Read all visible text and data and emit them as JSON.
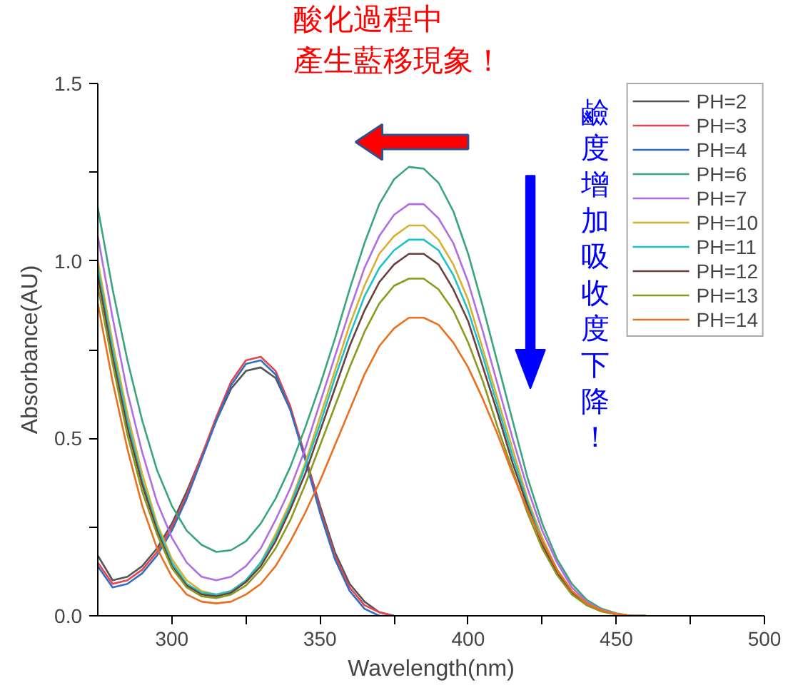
{
  "chart_data": {
    "type": "line",
    "xlabel": "Wavelength(nm)",
    "ylabel": "Absorbance(AU)",
    "xlim": [
      275,
      500
    ],
    "xticks": [
      300,
      {
        "value": 325,
        "label": null
      },
      350,
      {
        "value": 375,
        "label": null
      },
      400,
      {
        "value": 425,
        "label": null
      },
      450,
      {
        "value": 475,
        "label": null
      },
      500
    ],
    "ylim": [
      0,
      1.5
    ],
    "yticks": [
      {
        "value": 0,
        "label": "0.0"
      },
      {
        "value": 0.25,
        "label": null
      },
      {
        "value": 0.5,
        "label": "0.5"
      },
      {
        "value": 0.75,
        "label": null
      },
      {
        "value": 1.0,
        "label": "1.0"
      },
      {
        "value": 1.25,
        "label": null
      },
      {
        "value": 1.5,
        "label": "1.5"
      }
    ],
    "grid": false,
    "legend": "top right",
    "marker": "none",
    "line_style": "solid",
    "annotations": [
      "酸化過程中",
      "產生藍移現象！",
      "鹼度增加吸收度下降！"
    ],
    "series": [
      {
        "name": "PH=2",
        "color": "#555555",
        "x": [
          275,
          280,
          285,
          290,
          295,
          300,
          305,
          310,
          315,
          320,
          325,
          330,
          335,
          340,
          345,
          350,
          355,
          360,
          365,
          370,
          375
        ],
        "values": [
          0.17,
          0.1,
          0.11,
          0.14,
          0.19,
          0.26,
          0.35,
          0.45,
          0.55,
          0.64,
          0.69,
          0.7,
          0.67,
          0.58,
          0.45,
          0.31,
          0.18,
          0.09,
          0.04,
          0.01,
          0.0
        ]
      },
      {
        "name": "PH=3",
        "color": "#e8424d",
        "x": [
          275,
          280,
          285,
          290,
          295,
          300,
          305,
          310,
          315,
          320,
          325,
          330,
          335,
          340,
          345,
          350,
          355,
          360,
          365,
          370,
          375
        ],
        "values": [
          0.15,
          0.09,
          0.1,
          0.13,
          0.18,
          0.25,
          0.34,
          0.45,
          0.56,
          0.66,
          0.72,
          0.73,
          0.69,
          0.59,
          0.45,
          0.3,
          0.17,
          0.08,
          0.03,
          0.01,
          0.0
        ]
      },
      {
        "name": "PH=4",
        "color": "#2f6fc2",
        "x": [
          275,
          280,
          285,
          290,
          295,
          300,
          305,
          310,
          315,
          320,
          325,
          330,
          335,
          340,
          345,
          350,
          355,
          360,
          365,
          370,
          375
        ],
        "values": [
          0.14,
          0.08,
          0.09,
          0.12,
          0.17,
          0.24,
          0.33,
          0.44,
          0.55,
          0.65,
          0.71,
          0.72,
          0.68,
          0.58,
          0.44,
          0.29,
          0.16,
          0.07,
          0.02,
          0.0,
          0.0
        ]
      },
      {
        "name": "PH=6",
        "color": "#3aa57a",
        "x": [
          275,
          280,
          285,
          290,
          295,
          300,
          305,
          310,
          315,
          320,
          325,
          330,
          335,
          340,
          345,
          350,
          355,
          360,
          365,
          370,
          375,
          380,
          385,
          390,
          395,
          400,
          405,
          410,
          415,
          420,
          425,
          430,
          435,
          440,
          445,
          450,
          455,
          460
        ],
        "values": [
          1.15,
          0.92,
          0.72,
          0.55,
          0.41,
          0.31,
          0.24,
          0.2,
          0.18,
          0.185,
          0.21,
          0.26,
          0.33,
          0.42,
          0.53,
          0.65,
          0.78,
          0.92,
          1.05,
          1.16,
          1.23,
          1.265,
          1.26,
          1.22,
          1.14,
          1.02,
          0.87,
          0.71,
          0.55,
          0.39,
          0.26,
          0.16,
          0.09,
          0.045,
          0.02,
          0.007,
          0.0,
          0.0
        ]
      },
      {
        "name": "PH=7",
        "color": "#b06ee0",
        "x": [
          275,
          280,
          285,
          290,
          295,
          300,
          305,
          310,
          315,
          320,
          325,
          330,
          335,
          340,
          345,
          350,
          355,
          360,
          365,
          370,
          375,
          380,
          385,
          390,
          395,
          400,
          405,
          410,
          415,
          420,
          425,
          430,
          435,
          440,
          445,
          450,
          455,
          460
        ],
        "values": [
          1.07,
          0.84,
          0.63,
          0.46,
          0.32,
          0.22,
          0.15,
          0.11,
          0.1,
          0.11,
          0.14,
          0.19,
          0.27,
          0.36,
          0.47,
          0.6,
          0.73,
          0.86,
          0.98,
          1.07,
          1.13,
          1.16,
          1.16,
          1.12,
          1.05,
          0.94,
          0.8,
          0.65,
          0.5,
          0.36,
          0.24,
          0.15,
          0.08,
          0.04,
          0.017,
          0.006,
          0.0,
          0.0
        ]
      },
      {
        "name": "PH=10",
        "color": "#d8b030",
        "x": [
          275,
          280,
          285,
          290,
          295,
          300,
          305,
          310,
          315,
          320,
          325,
          330,
          335,
          340,
          345,
          350,
          355,
          360,
          365,
          370,
          375,
          380,
          385,
          390,
          395,
          400,
          405,
          410,
          415,
          420,
          425,
          430,
          435,
          440,
          445,
          450,
          455,
          460
        ],
        "values": [
          1.0,
          0.77,
          0.57,
          0.4,
          0.26,
          0.16,
          0.1,
          0.07,
          0.06,
          0.07,
          0.1,
          0.15,
          0.23,
          0.32,
          0.43,
          0.56,
          0.69,
          0.82,
          0.93,
          1.02,
          1.07,
          1.1,
          1.1,
          1.06,
          0.99,
          0.89,
          0.75,
          0.61,
          0.47,
          0.33,
          0.22,
          0.13,
          0.07,
          0.035,
          0.015,
          0.005,
          0.0,
          0.0
        ]
      },
      {
        "name": "PH=11",
        "color": "#20c0c8",
        "x": [
          275,
          280,
          285,
          290,
          295,
          300,
          305,
          310,
          315,
          320,
          325,
          330,
          335,
          340,
          345,
          350,
          355,
          360,
          365,
          370,
          375,
          380,
          385,
          390,
          395,
          400,
          405,
          410,
          415,
          420,
          425,
          430
        ],
        "values": [
          0.98,
          0.75,
          0.55,
          0.38,
          0.25,
          0.15,
          0.09,
          0.065,
          0.06,
          0.07,
          0.1,
          0.15,
          0.22,
          0.31,
          0.42,
          0.54,
          0.67,
          0.79,
          0.9,
          0.98,
          1.03,
          1.06,
          1.06,
          1.03,
          0.96,
          0.86,
          0.73,
          0.59,
          0.45,
          0.32,
          0.21,
          0.13
        ]
      },
      {
        "name": "PH=12",
        "color": "#6b3f3f",
        "x": [
          275,
          280,
          285,
          290,
          295,
          300,
          305,
          310,
          315,
          320,
          325,
          330,
          335,
          340,
          345,
          350,
          355,
          360,
          365,
          370,
          375,
          380,
          385,
          390,
          395,
          400,
          405,
          410,
          415,
          420,
          425,
          430,
          435,
          440,
          445,
          450,
          455,
          460
        ],
        "values": [
          0.96,
          0.73,
          0.53,
          0.37,
          0.24,
          0.14,
          0.085,
          0.06,
          0.055,
          0.065,
          0.095,
          0.14,
          0.21,
          0.3,
          0.4,
          0.52,
          0.64,
          0.76,
          0.86,
          0.94,
          0.99,
          1.02,
          1.02,
          0.99,
          0.92,
          0.83,
          0.7,
          0.57,
          0.43,
          0.31,
          0.2,
          0.12,
          0.065,
          0.03,
          0.013,
          0.004,
          0.0,
          0.0
        ]
      },
      {
        "name": "PH=13",
        "color": "#8a9a20",
        "x": [
          275,
          280,
          285,
          290,
          295,
          300,
          305,
          310,
          315,
          320,
          325,
          330,
          335,
          340,
          345,
          350,
          355,
          360,
          365,
          370,
          375,
          380,
          385,
          390,
          395,
          400,
          405,
          410,
          415,
          420,
          425,
          430,
          435,
          440,
          445,
          450,
          455,
          460
        ],
        "values": [
          0.93,
          0.71,
          0.51,
          0.35,
          0.23,
          0.135,
          0.08,
          0.055,
          0.05,
          0.06,
          0.085,
          0.13,
          0.19,
          0.27,
          0.37,
          0.48,
          0.59,
          0.7,
          0.8,
          0.88,
          0.93,
          0.95,
          0.95,
          0.92,
          0.86,
          0.77,
          0.66,
          0.53,
          0.41,
          0.29,
          0.19,
          0.115,
          0.06,
          0.03,
          0.012,
          0.004,
          0.0,
          0.0
        ]
      },
      {
        "name": "PH=14",
        "color": "#e87020",
        "x": [
          275,
          280,
          285,
          290,
          295,
          300,
          305,
          310,
          315,
          320,
          325,
          330,
          335,
          340,
          345,
          350,
          355,
          360,
          365,
          370,
          375,
          380,
          385,
          390,
          395,
          400,
          405,
          410,
          415,
          420,
          425,
          430,
          435,
          440,
          445,
          450,
          455,
          460
        ],
        "values": [
          0.88,
          0.66,
          0.47,
          0.31,
          0.19,
          0.11,
          0.06,
          0.04,
          0.035,
          0.04,
          0.06,
          0.09,
          0.14,
          0.21,
          0.29,
          0.38,
          0.48,
          0.58,
          0.68,
          0.76,
          0.81,
          0.84,
          0.84,
          0.82,
          0.77,
          0.7,
          0.61,
          0.51,
          0.4,
          0.3,
          0.21,
          0.13,
          0.07,
          0.035,
          0.015,
          0.005,
          0.0,
          0.0
        ]
      }
    ]
  }
}
